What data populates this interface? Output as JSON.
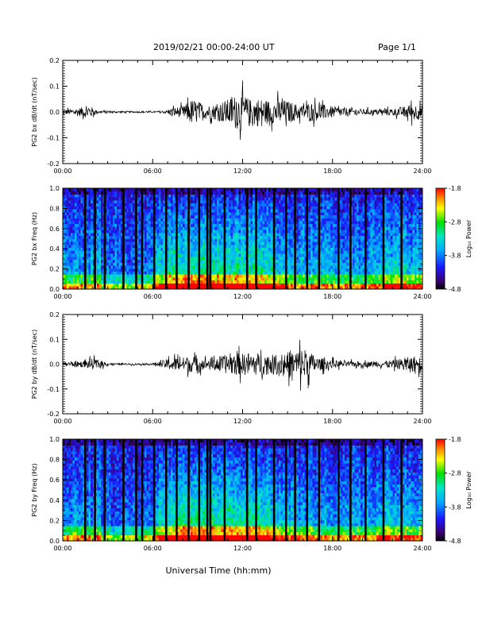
{
  "header": {
    "date_range": "2019/02/21  00:00-24:00 UT",
    "page": "Page 1/1"
  },
  "figure": {
    "xlabel": "Universal Time (hh:mm)"
  },
  "colorbar": {
    "label": "Log₁₀ Power",
    "tick_labels": [
      "-1.8",
      "-2.8",
      "-3.8",
      "-4.8"
    ],
    "range": [
      -4.8,
      -1.8
    ]
  },
  "chart_data": [
    {
      "type": "line",
      "id": "bx-waveform",
      "ylabel": "PG2 bx dB/dt (nT/sec)",
      "x_ticks": [
        "00:00",
        "06:00",
        "12:00",
        "18:00",
        "24:00"
      ],
      "y_ticks": [
        "-0.2",
        "-0.1",
        "0.0",
        "0.1",
        "0.2"
      ],
      "xlim": [
        0,
        24
      ],
      "ylim": [
        -0.2,
        0.2
      ],
      "envelope": {
        "hours": [
          0,
          0.5,
          1,
          1.4,
          1.8,
          2.3,
          3,
          4,
          5,
          6,
          6.8,
          7.3,
          8,
          8.6,
          9,
          9.5,
          10,
          10.5,
          11,
          11.5,
          12,
          12.5,
          13,
          13.5,
          14,
          14.5,
          15,
          15.5,
          16,
          16.5,
          17,
          17.5,
          18,
          18.5,
          19,
          20,
          21,
          22,
          22.8,
          23.3,
          24
        ],
        "amplitude": [
          0.02,
          0.02,
          0.03,
          0.035,
          0.045,
          0.01,
          0.008,
          0.006,
          0.006,
          0.006,
          0.01,
          0.03,
          0.04,
          0.09,
          0.08,
          0.05,
          0.05,
          0.07,
          0.09,
          0.12,
          0.13,
          0.09,
          0.1,
          0.09,
          0.08,
          0.09,
          0.08,
          0.06,
          0.05,
          0.07,
          0.06,
          0.05,
          0.04,
          0.035,
          0.03,
          0.02,
          0.02,
          0.025,
          0.04,
          0.06,
          0.05
        ]
      }
    },
    {
      "type": "heatmap",
      "id": "bx-spectrogram",
      "ylabel": "PG2 bx Freq (Hz)",
      "x_ticks": [
        "00:00",
        "06:00",
        "12:00",
        "18:00",
        "24:00"
      ],
      "y_ticks": [
        "0.0",
        "0.2",
        "0.4",
        "0.6",
        "0.8",
        "1.0"
      ],
      "xlim": [
        0,
        24
      ],
      "ylim": [
        0,
        1
      ],
      "colorbar_range": [
        -4.8,
        -1.8
      ],
      "gap_hours": [
        1.5,
        2.15,
        2.8,
        4.05,
        4.9,
        5.3,
        6.1,
        6.9,
        7.6,
        8.4,
        9.1,
        9.65,
        9.85,
        10.8,
        12.3,
        12.9,
        14.1,
        14.9,
        15.5,
        16.3,
        17.1,
        18.4,
        19.2,
        20.2,
        21.4,
        22.6
      ]
    },
    {
      "type": "line",
      "id": "by-waveform",
      "ylabel": "PG2 by dB/dt (nT/sec)",
      "x_ticks": [
        "00:00",
        "06:00",
        "12:00",
        "18:00",
        "24:00"
      ],
      "y_ticks": [
        "-0.2",
        "-0.1",
        "0.0",
        "0.1",
        "0.2"
      ],
      "xlim": [
        0,
        24
      ],
      "ylim": [
        -0.2,
        0.2
      ],
      "envelope": {
        "hours": [
          0,
          0.5,
          1,
          1.5,
          2,
          2.5,
          3,
          4,
          5,
          6,
          6.5,
          7,
          7.5,
          8,
          8.5,
          9,
          9.5,
          10,
          10.5,
          11,
          11.5,
          12,
          12.5,
          13,
          13.5,
          14,
          14.5,
          15,
          15.5,
          16,
          16.5,
          17,
          17.5,
          18,
          19,
          20,
          21,
          22,
          22.5,
          23,
          23.5,
          24
        ],
        "amplitude": [
          0.015,
          0.02,
          0.02,
          0.025,
          0.04,
          0.03,
          0.008,
          0.006,
          0.006,
          0.008,
          0.02,
          0.04,
          0.05,
          0.05,
          0.06,
          0.05,
          0.04,
          0.05,
          0.06,
          0.07,
          0.08,
          0.08,
          0.09,
          0.08,
          0.08,
          0.07,
          0.08,
          0.09,
          0.1,
          0.13,
          0.09,
          0.05,
          0.04,
          0.03,
          0.02,
          0.02,
          0.02,
          0.03,
          0.04,
          0.05,
          0.06,
          0.05
        ]
      }
    },
    {
      "type": "heatmap",
      "id": "by-spectrogram",
      "ylabel": "PG2 by Freq (Hz)",
      "x_ticks": [
        "00:00",
        "06:00",
        "12:00",
        "18:00",
        "24:00"
      ],
      "y_ticks": [
        "0.0",
        "0.2",
        "0.4",
        "0.6",
        "0.8",
        "1.0"
      ],
      "xlim": [
        0,
        24
      ],
      "ylim": [
        0,
        1
      ],
      "colorbar_range": [
        -4.8,
        -1.8
      ],
      "gap_hours": [
        1.5,
        2.15,
        2.8,
        4.05,
        4.9,
        5.3,
        6.1,
        6.9,
        7.6,
        8.4,
        9.1,
        9.65,
        9.85,
        10.8,
        12.3,
        12.9,
        14.1,
        14.9,
        15.5,
        16.3,
        17.1,
        18.4,
        19.2,
        20.2,
        21.4,
        22.6
      ]
    }
  ]
}
